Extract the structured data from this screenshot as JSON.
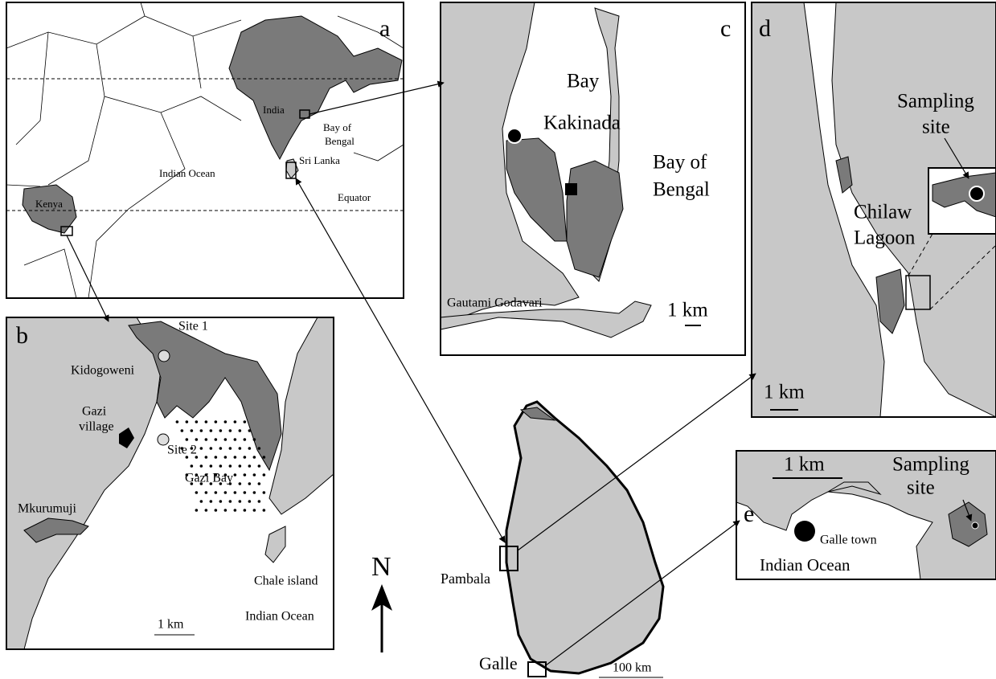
{
  "panels": [
    {
      "letter": "a",
      "labels": [
        "India",
        "Bay of",
        "Bengal",
        "Sri Lanka",
        "Indian Ocean",
        "Kenya",
        "Equator"
      ]
    },
    {
      "letter": "b",
      "labels": [
        "Site 1",
        "Kidogoweni",
        "Gazi",
        "village",
        "Site 2",
        "Gazi Bay",
        "Mkurumuji",
        "Chale island",
        "Indian Ocean",
        "1 km"
      ]
    },
    {
      "letter": "c",
      "labels": [
        "Kakinada",
        "Bay",
        "Bay of",
        "Bengal",
        "Gautami Godavari",
        "1 km"
      ]
    },
    {
      "letter": "d",
      "labels": [
        "Sampling",
        "site",
        "Chilaw",
        "Lagoon",
        "1 km"
      ]
    },
    {
      "letter": "e",
      "labels": [
        "1 km",
        "Sampling",
        "site",
        "Galle town",
        "Indian Ocean"
      ]
    }
  ],
  "main": {
    "north": "N",
    "places": [
      "Pambala",
      "Galle"
    ],
    "scale": "100 km"
  }
}
